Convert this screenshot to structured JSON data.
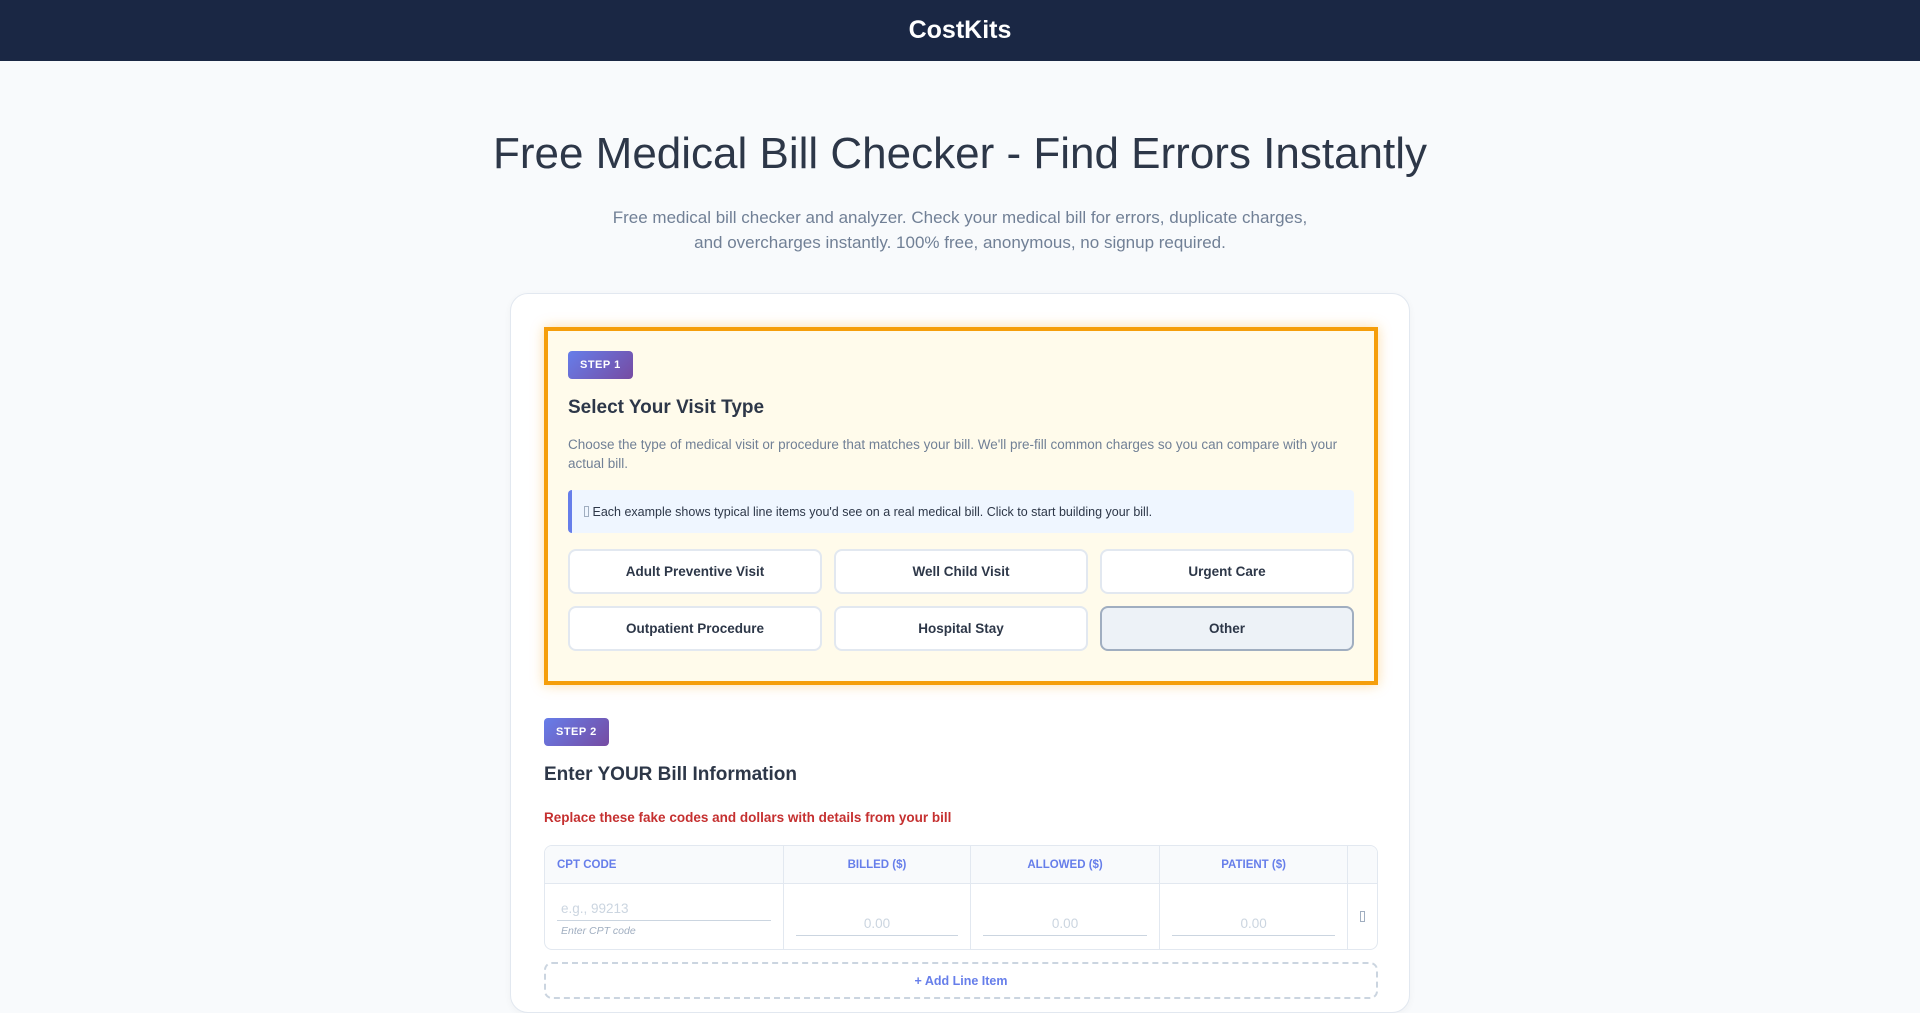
{
  "header": {
    "brand": "CostKits"
  },
  "hero": {
    "title": "Free Medical Bill Checker - Find Errors Instantly",
    "subtitle": "Free medical bill checker and analyzer. Check your medical bill for errors, duplicate charges, and overcharges instantly. 100% free, anonymous, no signup required."
  },
  "step1": {
    "badge": "STEP 1",
    "title": "Select Your Visit Type",
    "description": "Choose the type of medical visit or procedure that matches your bill. We'll pre-fill common charges so you can compare with your actual bill.",
    "info": "Each example shows typical line items you'd see on a real medical bill. Click to start building your bill.",
    "info_icon": "lightbulb-icon",
    "visit_types": [
      "Adult Preventive Visit",
      "Well Child Visit",
      "Urgent Care",
      "Outpatient Procedure",
      "Hospital Stay",
      "Other"
    ],
    "selected": "Other"
  },
  "step2": {
    "badge": "STEP 2",
    "title": "Enter YOUR Bill Information",
    "warning": "Replace these fake codes and dollars with details from your bill",
    "columns": [
      "CPT CODE",
      "BILLED ($)",
      "ALLOWED ($)",
      "PATIENT ($)",
      ""
    ],
    "row": {
      "cpt_placeholder": "e.g., 99213",
      "cpt_hint": "Enter CPT code",
      "billed_placeholder": "0.00",
      "allowed_placeholder": "0.00",
      "patient_placeholder": "0.00",
      "delete_icon": "trash-icon"
    },
    "add_label": "+ Add Line Item"
  },
  "colors": {
    "header": "#1a2744",
    "accent": "#667eea",
    "highlight": "#f59e0b",
    "warning": "#c53030"
  }
}
